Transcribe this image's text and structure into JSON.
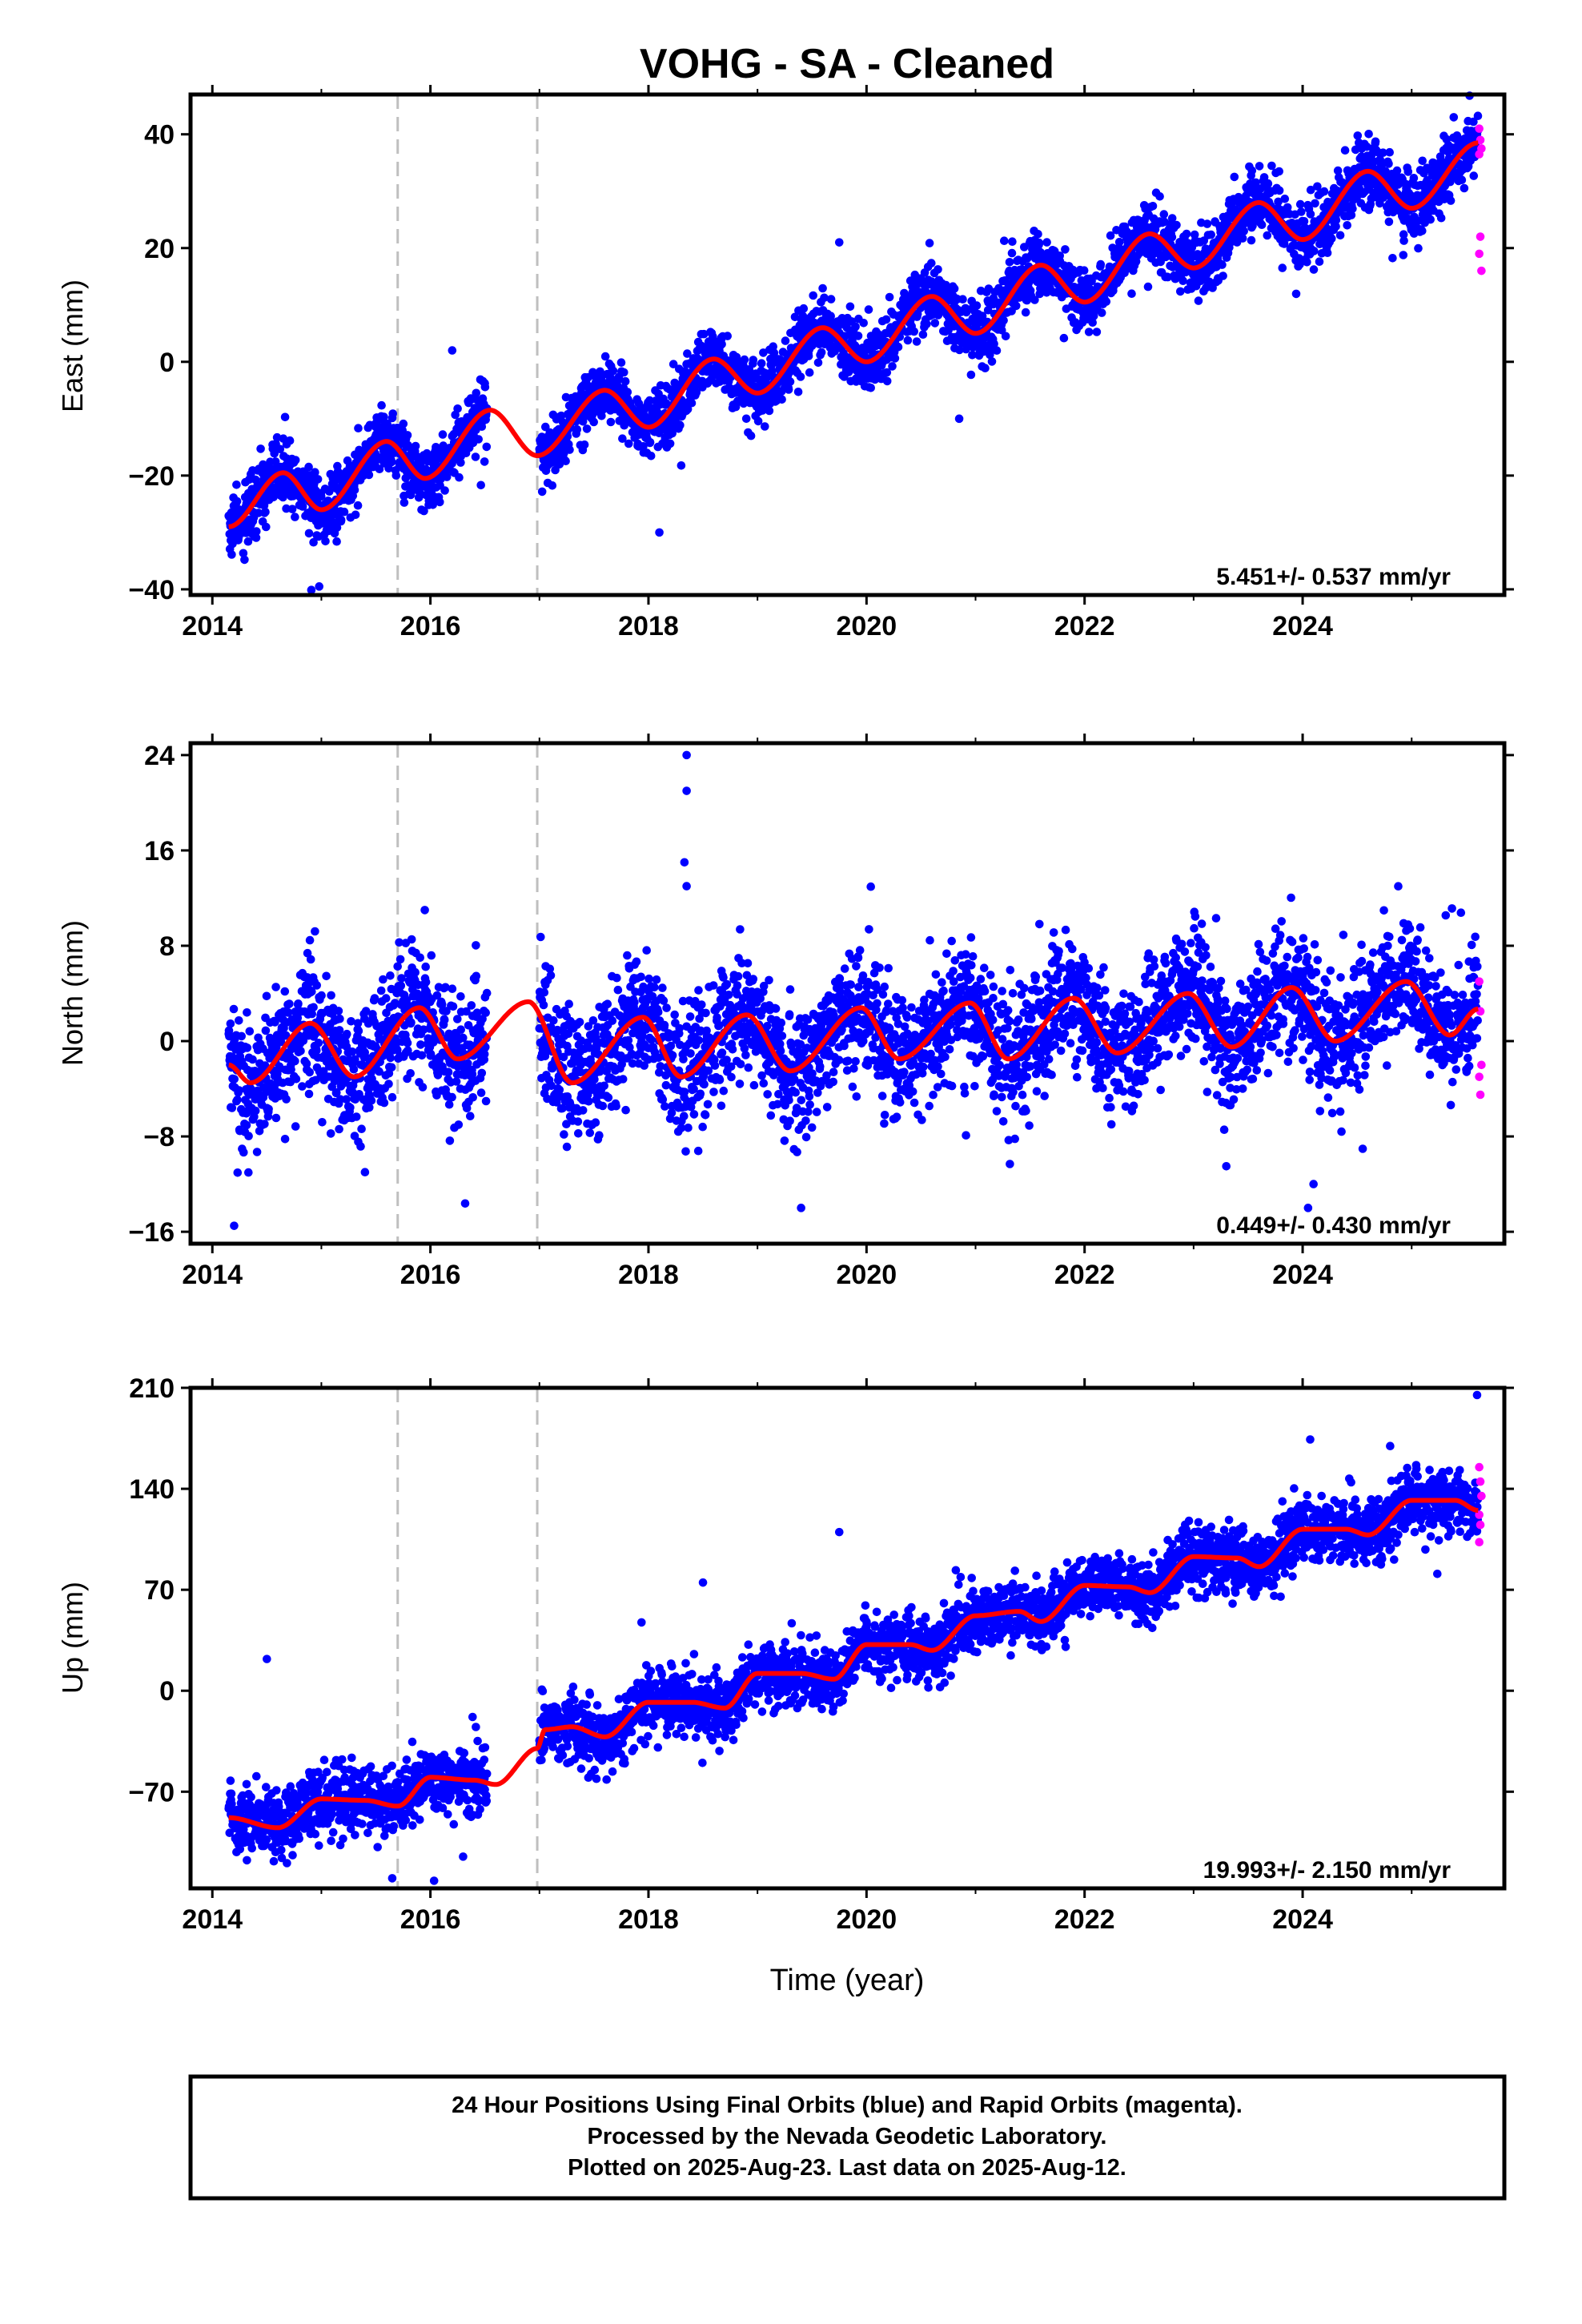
{
  "title": "VOHG  - SA - Cleaned",
  "xlabel": "Time (year)",
  "colors": {
    "final_orbits": "#0000ff",
    "rapid_orbits": "#ff00ff",
    "model": "#ff0000",
    "breaks": "#bfbfbf"
  },
  "footer": {
    "line1": "24 Hour Positions Using Final Orbits (blue) and Rapid Orbits (magenta).",
    "line2": "Processed by the Nevada Geodetic Laboratory.",
    "line3": "Plotted on 2025-Aug-23. Last data on 2025-Aug-12."
  },
  "chart_data": [
    {
      "type": "scatter",
      "ylabel": "East (mm)",
      "xlim": [
        2013.8,
        2025.85
      ],
      "ylim": [
        -41,
        47
      ],
      "xticks": [
        2014,
        2016,
        2018,
        2020,
        2022,
        2024
      ],
      "yticks": [
        -40,
        -20,
        0,
        20,
        40
      ],
      "ytick_labels": [
        "−40",
        "−20",
        "0",
        "20",
        "40"
      ],
      "rate_text": "5.451+/- 0.537 mm/yr",
      "rate_mm_per_yr": 5.451,
      "rate_sigma": 0.537,
      "breaks": [
        2015.7,
        2016.98
      ],
      "gaps": [
        [
          2016.52,
          2017.0
        ]
      ],
      "data_start": 2014.15,
      "data_end": 2025.61,
      "start_value": -29,
      "end_value": 38.5,
      "offsets": [],
      "seasonal_amplitude": 3.3,
      "seasonal_phase": 2.0,
      "scatter_sigma": 2.8,
      "model_key": [
        [
          2014.15,
          -29
        ],
        [
          2014.65,
          -19.5
        ],
        [
          2015.0,
          -26
        ],
        [
          2015.6,
          -14
        ],
        [
          2015.95,
          -20.5
        ],
        [
          2016.55,
          -8.5
        ],
        [
          2016.98,
          -16.5
        ],
        [
          2017.6,
          -5
        ],
        [
          2018.0,
          -11.5
        ],
        [
          2018.6,
          0.5
        ],
        [
          2019.0,
          -5.5
        ],
        [
          2019.6,
          6
        ],
        [
          2020.0,
          0
        ],
        [
          2020.6,
          11.5
        ],
        [
          2021.0,
          5
        ],
        [
          2021.6,
          17
        ],
        [
          2022.0,
          10.5
        ],
        [
          2022.6,
          22.5
        ],
        [
          2023.0,
          16.5
        ],
        [
          2023.6,
          28
        ],
        [
          2024.0,
          21.5
        ],
        [
          2024.6,
          33.5
        ],
        [
          2025.0,
          27
        ],
        [
          2025.61,
          38.5
        ]
      ],
      "outliers": [
        [
          2014.98,
          -39.5
        ],
        [
          2016.2,
          2
        ],
        [
          2018.1,
          -30
        ],
        [
          2019.75,
          21
        ],
        [
          2020.85,
          -10
        ]
      ],
      "rapid_points": [
        [
          2025.62,
          41
        ],
        [
          2025.63,
          39
        ],
        [
          2025.64,
          37.5
        ],
        [
          2025.62,
          36.5
        ],
        [
          2025.63,
          22
        ],
        [
          2025.62,
          19
        ],
        [
          2025.64,
          16
        ]
      ]
    },
    {
      "type": "scatter",
      "ylabel": "North (mm)",
      "xlim": [
        2013.8,
        2025.85
      ],
      "ylim": [
        -17,
        25
      ],
      "xticks": [
        2014,
        2016,
        2018,
        2020,
        2022,
        2024
      ],
      "yticks": [
        -16,
        -8,
        0,
        8,
        16,
        24
      ],
      "ytick_labels": [
        "−16",
        "−8",
        "0",
        "8",
        "16",
        "24"
      ],
      "rate_text": "0.449+/- 0.430 mm/yr",
      "rate_mm_per_yr": 0.449,
      "rate_sigma": 0.43,
      "breaks": [
        2015.7,
        2016.98
      ],
      "gaps": [
        [
          2016.52,
          2017.0
        ]
      ],
      "data_start": 2014.15,
      "data_end": 2025.61,
      "start_value": -2,
      "end_value": 2.5,
      "offsets": [],
      "seasonal_amplitude": 2.5,
      "seasonal_phase": 0.5,
      "scatter_sigma": 2.6,
      "model_key": [
        [
          2014.15,
          -2
        ],
        [
          2014.35,
          -3.5
        ],
        [
          2014.9,
          1.5
        ],
        [
          2015.3,
          -3
        ],
        [
          2015.9,
          2.8
        ],
        [
          2016.25,
          -1.5
        ],
        [
          2016.9,
          3.3
        ],
        [
          2017.3,
          -3.5
        ],
        [
          2017.95,
          2
        ],
        [
          2018.3,
          -3
        ],
        [
          2018.9,
          2.2
        ],
        [
          2019.3,
          -2.5
        ],
        [
          2019.95,
          2.8
        ],
        [
          2020.3,
          -1.5
        ],
        [
          2020.95,
          3.2
        ],
        [
          2021.3,
          -1.5
        ],
        [
          2021.9,
          3.6
        ],
        [
          2022.3,
          -1
        ],
        [
          2022.95,
          4
        ],
        [
          2023.35,
          -0.5
        ],
        [
          2023.9,
          4.5
        ],
        [
          2024.3,
          0
        ],
        [
          2024.95,
          5
        ],
        [
          2025.35,
          0.5
        ],
        [
          2025.61,
          2.7
        ]
      ],
      "outliers": [
        [
          2014.2,
          -15.5
        ],
        [
          2015.4,
          -11
        ],
        [
          2018.35,
          24
        ],
        [
          2018.35,
          21
        ],
        [
          2018.33,
          15
        ],
        [
          2018.35,
          13
        ],
        [
          2019.4,
          -14
        ],
        [
          2023.3,
          -10.5
        ],
        [
          2024.05,
          -14
        ],
        [
          2024.1,
          -12
        ]
      ],
      "rapid_points": [
        [
          2025.62,
          5
        ],
        [
          2025.63,
          2.5
        ],
        [
          2025.64,
          -2
        ],
        [
          2025.62,
          -3
        ],
        [
          2025.63,
          -4.5
        ]
      ]
    },
    {
      "type": "scatter",
      "ylabel": "Up (mm)",
      "xlim": [
        2013.8,
        2025.85
      ],
      "ylim": [
        -137,
        210
      ],
      "xticks": [
        2014,
        2016,
        2018,
        2020,
        2022,
        2024
      ],
      "yticks": [
        -70,
        0,
        70,
        140,
        210
      ],
      "ytick_labels": [
        "−70",
        "0",
        "70",
        "140",
        "210"
      ],
      "rate_text": "19.993+/- 2.150 mm/yr",
      "rate_mm_per_yr": 19.993,
      "rate_sigma": 2.15,
      "breaks": [
        2015.7,
        2016.98
      ],
      "gaps": [
        [
          2016.52,
          2017.0
        ]
      ],
      "data_start": 2014.15,
      "data_end": 2025.61,
      "start_value": -88,
      "end_value": 125,
      "offsets": [],
      "seasonal_amplitude": 6,
      "seasonal_phase": 1.0,
      "scatter_sigma": 11,
      "model_key": [
        [
          2014.15,
          -88
        ],
        [
          2014.6,
          -95
        ],
        [
          2015.0,
          -75
        ],
        [
          2015.4,
          -76
        ],
        [
          2015.7,
          -80
        ],
        [
          2016.0,
          -60
        ],
        [
          2016.4,
          -62
        ],
        [
          2016.6,
          -65
        ],
        [
          2016.98,
          -40
        ],
        [
          2017.05,
          -27
        ],
        [
          2017.3,
          -25
        ],
        [
          2017.6,
          -32
        ],
        [
          2018.0,
          -8
        ],
        [
          2018.4,
          -8
        ],
        [
          2018.7,
          -12
        ],
        [
          2019.0,
          12
        ],
        [
          2019.4,
          12
        ],
        [
          2019.7,
          8
        ],
        [
          2020.0,
          32
        ],
        [
          2020.4,
          32
        ],
        [
          2020.6,
          28
        ],
        [
          2021.0,
          52
        ],
        [
          2021.4,
          55
        ],
        [
          2021.6,
          48
        ],
        [
          2022.0,
          73
        ],
        [
          2022.4,
          72
        ],
        [
          2022.6,
          68
        ],
        [
          2023.0,
          93
        ],
        [
          2023.4,
          92
        ],
        [
          2023.6,
          86
        ],
        [
          2024.0,
          112
        ],
        [
          2024.4,
          112
        ],
        [
          2024.6,
          108
        ],
        [
          2025.0,
          132
        ],
        [
          2025.4,
          132
        ],
        [
          2025.61,
          125
        ]
      ],
      "outliers": [
        [
          2014.5,
          22
        ],
        [
          2015.65,
          -130
        ],
        [
          2018.5,
          75
        ],
        [
          2019.75,
          110
        ],
        [
          2025.6,
          205
        ],
        [
          2016.3,
          -115
        ]
      ],
      "rapid_points": [
        [
          2025.62,
          155
        ],
        [
          2025.63,
          145
        ],
        [
          2025.64,
          135
        ],
        [
          2025.62,
          122
        ],
        [
          2025.63,
          115
        ],
        [
          2025.62,
          103
        ]
      ]
    }
  ]
}
